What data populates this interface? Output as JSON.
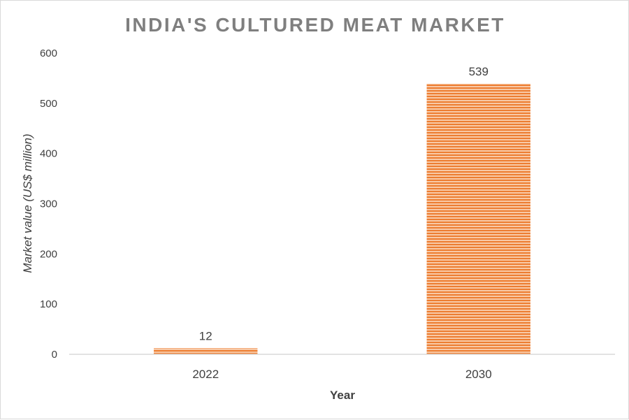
{
  "chart_data": {
    "type": "bar",
    "title": "INDIA'S CULTURED MEAT MARKET",
    "xlabel": "Year",
    "ylabel": "Market value (US$ million)",
    "categories": [
      "2022",
      "2030"
    ],
    "values": [
      12,
      539
    ],
    "data_labels": [
      "12",
      "539"
    ],
    "ylim": [
      0,
      600
    ],
    "yticks": [
      0,
      100,
      200,
      300,
      400,
      500,
      600
    ],
    "grid": false,
    "legend": "none",
    "bar_color": "#ed7d31",
    "bar_fill_pattern": "horizontal-stripes"
  }
}
